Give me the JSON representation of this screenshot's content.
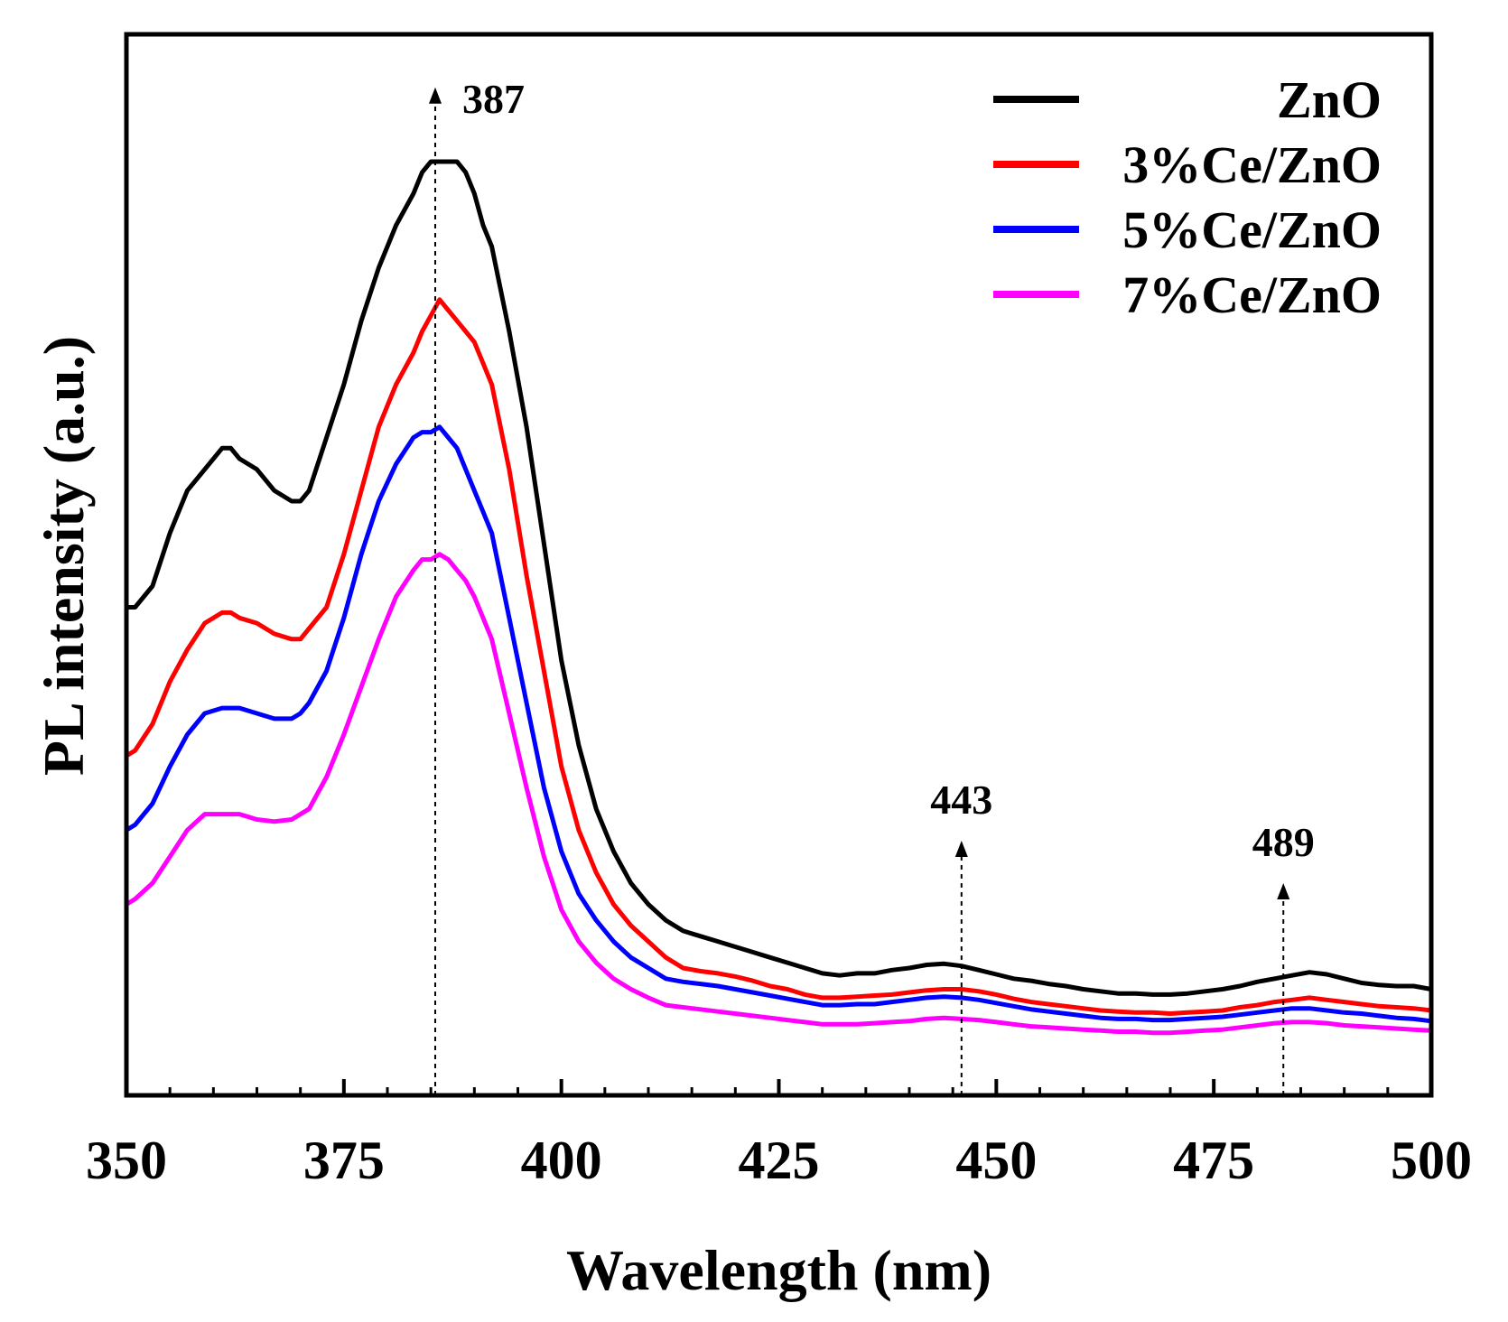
{
  "chart_data": {
    "type": "line",
    "xlabel": "Wavelength (nm)",
    "ylabel": "PL intensity (a.u.)",
    "xlim": [
      350,
      500
    ],
    "ylim": [
      0,
      100
    ],
    "xticks": [
      350,
      375,
      400,
      425,
      450,
      475,
      500
    ],
    "yticks_shown": false,
    "grid": false,
    "legend_position": "top-right",
    "annotations": [
      {
        "label": "387",
        "x": 385.5,
        "arrow_from": 0,
        "arrow_to": 95,
        "label_side": "right"
      },
      {
        "label": "443",
        "x": 446,
        "arrow_from": 0,
        "arrow_to": 24,
        "label_side": "above"
      },
      {
        "label": "489",
        "x": 483,
        "arrow_from": 0,
        "arrow_to": 20,
        "label_side": "above"
      }
    ],
    "series": [
      {
        "name": "ZnO",
        "color": "#000000",
        "x": [
          350,
          351,
          353,
          355,
          357,
          359,
          361,
          362,
          363,
          365,
          367,
          369,
          370,
          371,
          373,
          375,
          377,
          379,
          381,
          383,
          384,
          385,
          386,
          387,
          388,
          389,
          390,
          391,
          392,
          394,
          396,
          398,
          400,
          402,
          404,
          406,
          408,
          410,
          412,
          414,
          416,
          418,
          420,
          422,
          424,
          426,
          428,
          430,
          432,
          434,
          436,
          438,
          440,
          442,
          444,
          446,
          448,
          450,
          452,
          454,
          456,
          458,
          460,
          462,
          464,
          466,
          468,
          470,
          472,
          474,
          476,
          478,
          480,
          482,
          484,
          486,
          488,
          490,
          492,
          494,
          496,
          498,
          500
        ],
        "values": [
          46,
          46,
          48,
          53,
          57,
          59,
          61,
          61,
          60,
          59,
          57,
          56,
          56,
          57,
          62,
          67,
          73,
          78,
          82,
          85,
          87,
          88,
          88,
          88,
          88,
          87,
          85,
          82,
          80,
          72,
          63,
          52,
          41,
          33,
          27,
          23,
          20,
          18,
          16.5,
          15.5,
          15,
          14.5,
          14,
          13.5,
          13,
          12.5,
          12,
          11.5,
          11.3,
          11.5,
          11.5,
          11.8,
          12,
          12.3,
          12.4,
          12.2,
          11.8,
          11.4,
          11,
          10.8,
          10.5,
          10.3,
          10,
          9.8,
          9.6,
          9.6,
          9.5,
          9.5,
          9.6,
          9.8,
          10,
          10.3,
          10.7,
          11,
          11.3,
          11.6,
          11.4,
          11,
          10.6,
          10.4,
          10.3,
          10.3,
          10
        ]
      },
      {
        "name": "3%Ce/ZnO",
        "color": "#ff0000",
        "x": [
          350,
          351,
          353,
          355,
          357,
          359,
          361,
          362,
          363,
          365,
          367,
          369,
          370,
          371,
          373,
          375,
          377,
          379,
          381,
          383,
          384,
          385,
          386,
          387,
          388,
          389,
          390,
          391,
          392,
          394,
          396,
          398,
          400,
          402,
          404,
          406,
          408,
          410,
          412,
          414,
          416,
          418,
          420,
          422,
          424,
          426,
          428,
          430,
          432,
          434,
          436,
          438,
          440,
          442,
          444,
          446,
          448,
          450,
          452,
          454,
          456,
          458,
          460,
          462,
          464,
          466,
          468,
          470,
          472,
          474,
          476,
          478,
          480,
          482,
          484,
          486,
          488,
          490,
          492,
          494,
          496,
          498,
          500
        ],
        "values": [
          32,
          32.5,
          35,
          39,
          42,
          44.5,
          45.5,
          45.5,
          45,
          44.5,
          43.5,
          43,
          43,
          44,
          46,
          51,
          57,
          63,
          67,
          70,
          72,
          73.5,
          75,
          74,
          73,
          72,
          71,
          69,
          67,
          59,
          49,
          40,
          31,
          25,
          21,
          18,
          16,
          14.5,
          13,
          12,
          11.7,
          11.5,
          11.2,
          10.8,
          10.3,
          10,
          9.5,
          9.2,
          9.2,
          9.3,
          9.4,
          9.5,
          9.7,
          9.9,
          10,
          10,
          9.8,
          9.5,
          9.1,
          8.8,
          8.6,
          8.4,
          8.2,
          8,
          7.9,
          7.8,
          7.8,
          7.7,
          7.8,
          7.9,
          8,
          8.3,
          8.5,
          8.8,
          9,
          9.2,
          9,
          8.8,
          8.6,
          8.4,
          8.3,
          8.2,
          8
        ]
      },
      {
        "name": "5%Ce/ZnO",
        "color": "#0000ff",
        "x": [
          350,
          351,
          353,
          355,
          357,
          359,
          361,
          362,
          363,
          365,
          367,
          369,
          370,
          371,
          373,
          375,
          377,
          379,
          381,
          383,
          384,
          385,
          386,
          387,
          388,
          389,
          390,
          391,
          392,
          394,
          396,
          398,
          400,
          402,
          404,
          406,
          408,
          410,
          412,
          414,
          416,
          418,
          420,
          422,
          424,
          426,
          428,
          430,
          432,
          434,
          436,
          438,
          440,
          442,
          444,
          446,
          448,
          450,
          452,
          454,
          456,
          458,
          460,
          462,
          464,
          466,
          468,
          470,
          472,
          474,
          476,
          478,
          480,
          482,
          484,
          486,
          488,
          490,
          492,
          494,
          496,
          498,
          500
        ],
        "values": [
          25,
          25.5,
          27.5,
          31,
          34,
          36,
          36.5,
          36.5,
          36.5,
          36,
          35.5,
          35.5,
          36,
          37,
          40,
          45,
          51,
          56,
          59.5,
          62,
          62.5,
          62.5,
          63,
          62,
          61,
          59,
          57,
          55,
          53,
          45,
          37,
          29,
          23,
          19,
          16.5,
          14.5,
          13,
          12,
          11,
          10.7,
          10.5,
          10.3,
          10,
          9.7,
          9.4,
          9.1,
          8.8,
          8.5,
          8.5,
          8.6,
          8.6,
          8.8,
          9,
          9.2,
          9.3,
          9.2,
          9,
          8.7,
          8.4,
          8.1,
          7.9,
          7.7,
          7.5,
          7.3,
          7.2,
          7.2,
          7.1,
          7.1,
          7.2,
          7.3,
          7.4,
          7.6,
          7.8,
          8,
          8.2,
          8.2,
          8,
          7.8,
          7.7,
          7.5,
          7.3,
          7.2,
          7
        ]
      },
      {
        "name": "7%Ce/ZnO",
        "color": "#ff00ff",
        "x": [
          350,
          351,
          353,
          355,
          357,
          359,
          361,
          362,
          363,
          365,
          367,
          369,
          370,
          371,
          373,
          375,
          377,
          379,
          381,
          383,
          384,
          385,
          386,
          387,
          388,
          389,
          390,
          391,
          392,
          394,
          396,
          398,
          400,
          402,
          404,
          406,
          408,
          410,
          412,
          414,
          416,
          418,
          420,
          422,
          424,
          426,
          428,
          430,
          432,
          434,
          436,
          438,
          440,
          442,
          444,
          446,
          448,
          450,
          452,
          454,
          456,
          458,
          460,
          462,
          464,
          466,
          468,
          470,
          472,
          474,
          476,
          478,
          480,
          482,
          484,
          486,
          488,
          490,
          492,
          494,
          496,
          498,
          500
        ],
        "values": [
          18,
          18.5,
          20,
          22.5,
          25,
          26.5,
          26.5,
          26.5,
          26.5,
          26,
          25.8,
          26,
          26.5,
          27,
          30,
          34,
          38.5,
          43,
          47,
          49.5,
          50.5,
          50.5,
          51,
          50.5,
          49.5,
          48.5,
          47,
          45,
          43,
          36,
          29,
          22.5,
          17.5,
          14.5,
          12.5,
          11,
          10,
          9.2,
          8.5,
          8.3,
          8.1,
          7.9,
          7.7,
          7.5,
          7.3,
          7.1,
          6.9,
          6.7,
          6.7,
          6.7,
          6.8,
          6.9,
          7,
          7.2,
          7.3,
          7.2,
          7.1,
          6.9,
          6.7,
          6.5,
          6.4,
          6.3,
          6.2,
          6.1,
          6,
          6,
          5.9,
          5.9,
          6,
          6.1,
          6.2,
          6.4,
          6.6,
          6.8,
          6.9,
          6.9,
          6.8,
          6.6,
          6.5,
          6.4,
          6.3,
          6.2,
          6.1
        ]
      }
    ]
  }
}
